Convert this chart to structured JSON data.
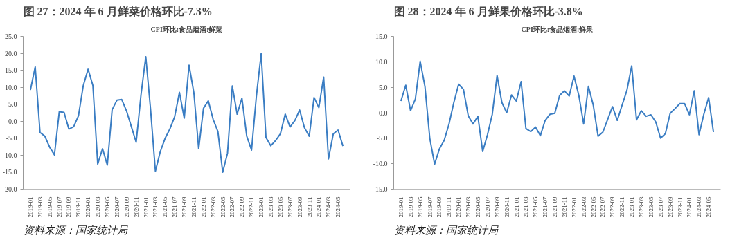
{
  "chart_data": [
    {
      "type": "line",
      "title": "图 27：2024 年 6 月鲜菜价格环比-7.3%",
      "subtitle": "CPI环比:食品烟酒:鲜菜",
      "annotations": [
        "资料来源：国家统计局"
      ],
      "categories": [
        "2019-01",
        null,
        "2019-03",
        null,
        "2019-05",
        null,
        "2019-07",
        null,
        "2019-09",
        null,
        "2019-11",
        null,
        "2020-01",
        null,
        "2020-03",
        null,
        "2020-05",
        null,
        "2020-07",
        null,
        "2020-09",
        null,
        "2020-11",
        null,
        "2021-01",
        null,
        "2021-03",
        null,
        "2021-05",
        null,
        "2021-07",
        null,
        "2021-09",
        null,
        "2021-11",
        null,
        "2022-01",
        null,
        "2022-03",
        null,
        "2022-05",
        null,
        "2022-07",
        null,
        "2022-09",
        null,
        "2022-11",
        null,
        "2023-01",
        null,
        "2023-03",
        null,
        "2023-05",
        null,
        "2023-07",
        null,
        "2023-09",
        null,
        "2023-11",
        null,
        "2024-01",
        null,
        "2024-03",
        null,
        "2024-05",
        null
      ],
      "series": [
        {
          "color": "#3a7dc3",
          "values": [
            9.2,
            16.0,
            -3.3,
            -4.4,
            -7.6,
            -9.9,
            2.8,
            2.6,
            -2.3,
            -1.6,
            1.6,
            10.5,
            15.3,
            10.5,
            -12.6,
            -8.1,
            -12.9,
            3.4,
            6.2,
            6.4,
            3.0,
            -1.6,
            -6.2,
            7.7,
            19.0,
            3.4,
            -14.7,
            -9.0,
            -5.1,
            -2.3,
            1.3,
            8.5,
            0.9,
            16.5,
            8.4,
            -8.1,
            3.8,
            6.0,
            0.6,
            -3.0,
            -15.0,
            -9.4,
            10.4,
            2.1,
            6.8,
            -4.4,
            -8.5,
            7.3,
            19.9,
            -4.8,
            -7.2,
            -5.7,
            -3.7,
            2.1,
            -1.7,
            0.2,
            3.3,
            -1.9,
            -4.4,
            7.0,
            4.0,
            13.0,
            -11.1,
            -3.7,
            -2.6,
            -7.3
          ]
        }
      ],
      "ylim": [
        -20,
        25
      ],
      "yticks": [
        {
          "value": -20,
          "label": "-20.0"
        },
        {
          "value": -15,
          "label": "-15.0"
        },
        {
          "value": -10,
          "label": "-10.0"
        },
        {
          "value": -5,
          "label": "-5.0"
        },
        {
          "value": 0,
          "label": "0.0"
        },
        {
          "value": 5,
          "label": "5.0"
        },
        {
          "value": 10,
          "label": "10.0"
        },
        {
          "value": 15,
          "label": "15.0"
        },
        {
          "value": 20,
          "label": "20.0"
        },
        {
          "value": 25,
          "label": "25.0"
        }
      ],
      "grid": false,
      "line_style": "solid"
    },
    {
      "type": "line",
      "title": "图 28：2024 年 6 月鲜果价格环比-3.8%",
      "subtitle": "CPI环比:食品烟酒:鲜果",
      "annotations": [
        "资料来源：国家统计局"
      ],
      "categories": [
        "2019-01",
        null,
        "2019-03",
        null,
        "2019-05",
        null,
        "2019-07",
        null,
        "2019-09",
        null,
        "2019-11",
        null,
        "2020-01",
        null,
        "2020-03",
        null,
        "2020-05",
        null,
        "2020-07",
        null,
        "2020-09",
        null,
        "2020-11",
        null,
        "2021-01",
        null,
        "2021-03",
        null,
        "2021-05",
        null,
        "2021-07",
        null,
        "2021-09",
        null,
        "2021-11",
        null,
        "2022-01",
        null,
        "2022-03",
        null,
        "2022-05",
        null,
        "2022-07",
        null,
        "2022-09",
        null,
        "2022-11",
        null,
        "2023-01",
        null,
        "2023-03",
        null,
        "2023-05",
        null,
        "2023-07",
        null,
        "2023-09",
        null,
        "2023-11",
        null,
        "2024-01",
        null,
        "2024-03",
        null,
        "2024-05",
        null
      ],
      "series": [
        {
          "color": "#3a7dc3",
          "values": [
            2.3,
            5.4,
            0.4,
            2.7,
            10.1,
            5.1,
            -5.0,
            -10.1,
            -7.1,
            -5.4,
            -2.2,
            2.0,
            5.6,
            4.6,
            -0.6,
            -2.2,
            -0.7,
            -7.6,
            -4.3,
            -0.3,
            7.3,
            2.0,
            0.0,
            3.5,
            2.3,
            6.1,
            -3.1,
            -3.7,
            -2.8,
            -4.5,
            -1.5,
            -0.3,
            -0.1,
            3.4,
            4.3,
            3.3,
            7.2,
            3.4,
            -2.2,
            5.2,
            1.5,
            -4.6,
            -3.8,
            -1.3,
            1.2,
            -1.5,
            1.5,
            4.4,
            9.2,
            -1.4,
            0.4,
            -0.7,
            -0.4,
            -1.8,
            -5.0,
            -4.1,
            -0.1,
            0.8,
            1.8,
            1.8,
            -0.4,
            4.3,
            -4.3,
            -0.3,
            3.0,
            -3.8
          ]
        }
      ],
      "ylim": [
        -15,
        15
      ],
      "yticks": [
        {
          "value": -15,
          "label": "-15.0"
        },
        {
          "value": -10,
          "label": "-10.0"
        },
        {
          "value": -5,
          "label": "-5.0"
        },
        {
          "value": 0,
          "label": "0.0"
        },
        {
          "value": 5,
          "label": "5.0"
        },
        {
          "value": 10,
          "label": "10.0"
        },
        {
          "value": 15,
          "label": "15.0"
        }
      ],
      "grid": false,
      "line_style": "solid"
    }
  ]
}
